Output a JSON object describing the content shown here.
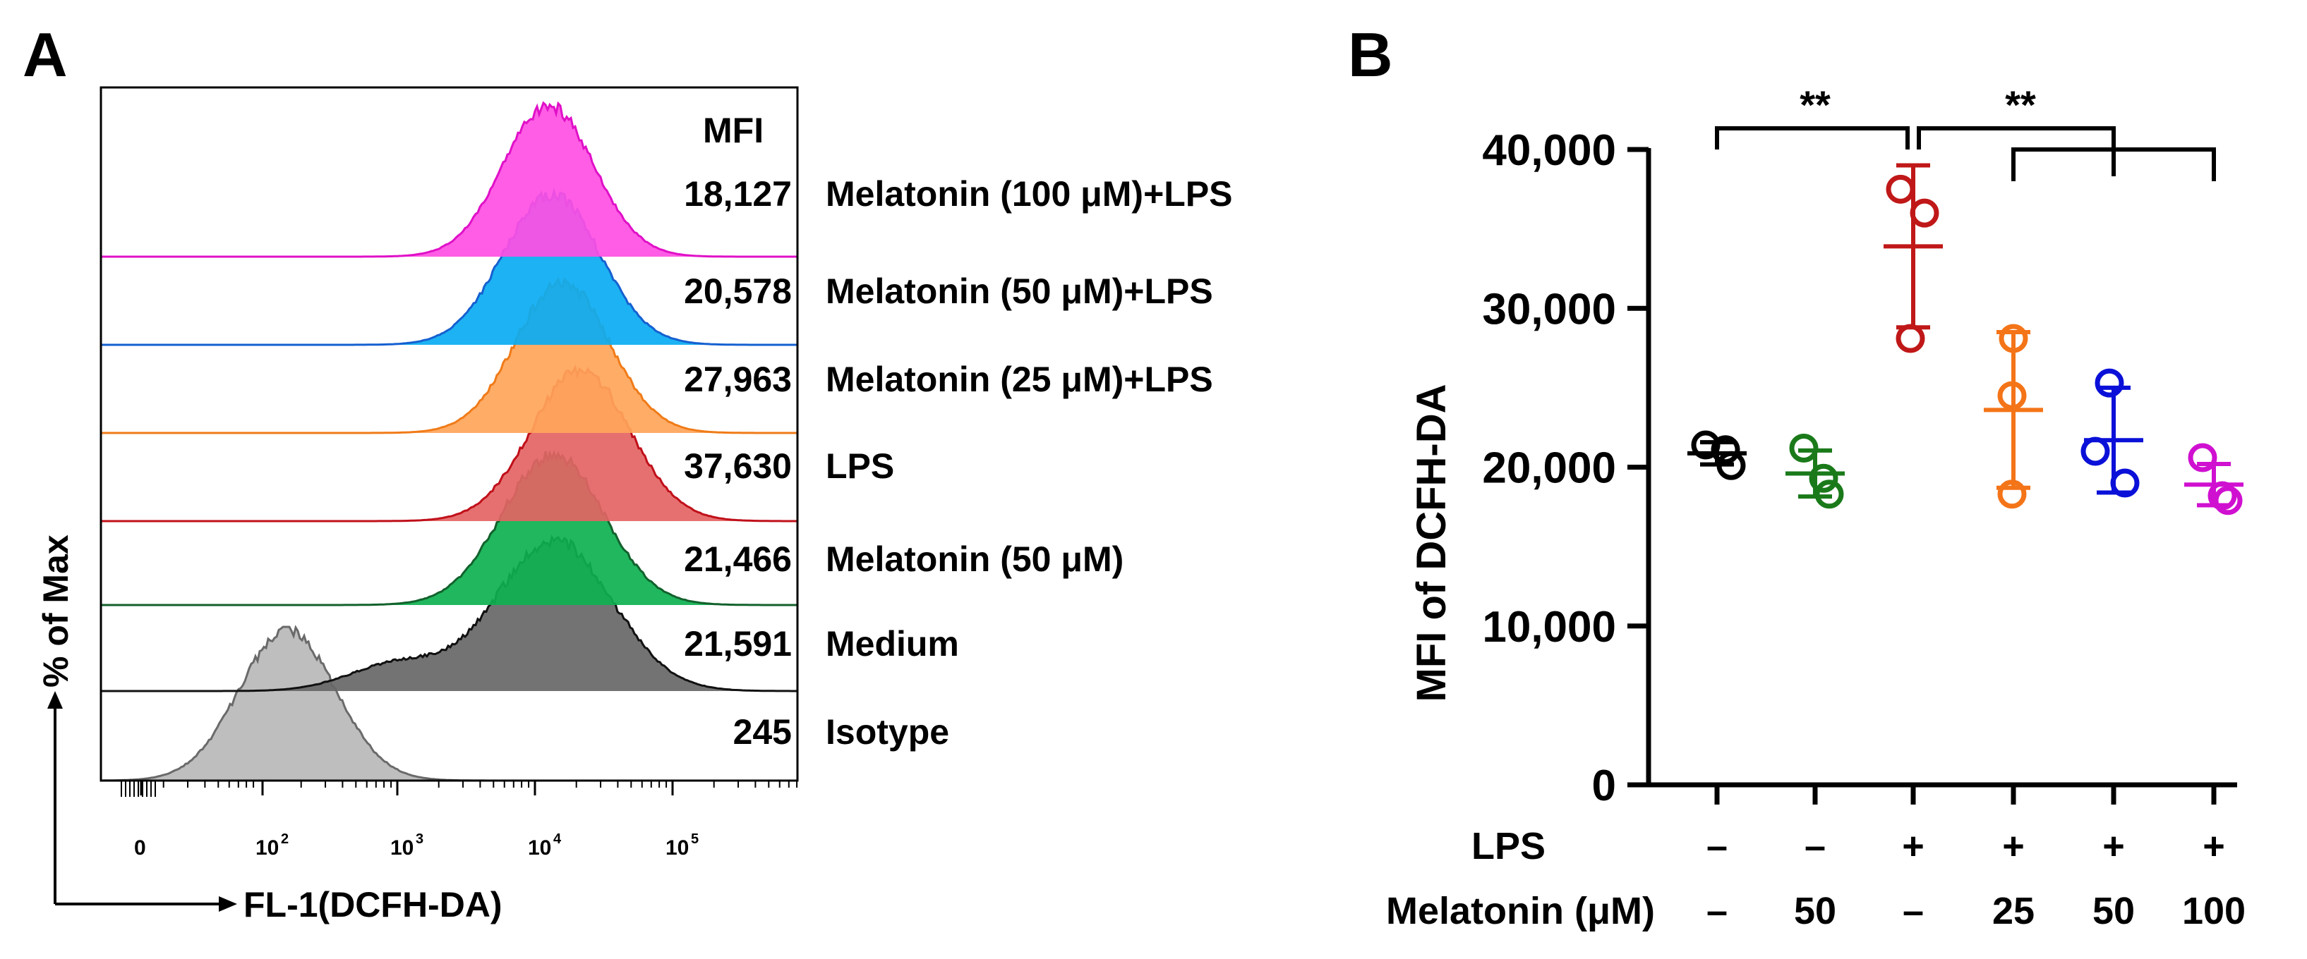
{
  "chart_data": [
    {
      "panel": "A",
      "type": "area",
      "title": "",
      "xlabel": "FL-1(DCFH-DA)",
      "ylabel": "% of Max",
      "mfi_header": "MFI",
      "x_tick_labels": [
        {
          "base": "0",
          "exp": ""
        },
        {
          "base": "10",
          "exp": "2"
        },
        {
          "base": "10",
          "exp": "3"
        },
        {
          "base": "10",
          "exp": "4"
        },
        {
          "base": "10",
          "exp": "5"
        }
      ],
      "x_tick_log_values": [
        0,
        2,
        3,
        4,
        5
      ],
      "series": [
        {
          "name": "Melatonin (100 μM)+LPS",
          "mfi": "18,127",
          "color": "#ff4fe3",
          "edge": "#e010c8",
          "peak_log": 4.1,
          "width": 0.33
        },
        {
          "name": "Melatonin (50 μM)+LPS",
          "mfi": "20,578",
          "color": "#0aabf2",
          "edge": "#1560d0",
          "peak_log": 4.12,
          "width": 0.35
        },
        {
          "name": "Melatonin (25 μM)+LPS",
          "mfi": "27,963",
          "color": "#ffa55a",
          "edge": "#f07b18",
          "peak_log": 4.2,
          "width": 0.34
        },
        {
          "name": "LPS",
          "mfi": "37,630",
          "color": "#e46464",
          "edge": "#c0101a",
          "peak_log": 4.33,
          "width": 0.36
        },
        {
          "name": "Melatonin (50 μM)",
          "mfi": "21,466",
          "color": "#0db150",
          "edge": "#12612c",
          "peak_log": 4.13,
          "width": 0.37
        },
        {
          "name": "Medium",
          "mfi": "21,591",
          "color": "#676767",
          "edge": "#111111",
          "peak_log": 4.14,
          "width": 0.42
        },
        {
          "name": "Isotype",
          "mfi": "245",
          "color": "#b8b8b8",
          "edge": "#6a6a6a",
          "peak_log": 2.2,
          "width": 0.35
        }
      ]
    },
    {
      "panel": "B",
      "type": "scatter",
      "title": "",
      "xlabel": "",
      "ylabel": "MFI of DCFH-DA",
      "ylim": [
        0,
        40000
      ],
      "y_ticks": [
        0,
        10000,
        20000,
        30000,
        40000
      ],
      "y_tick_labels": [
        "0",
        "10,000",
        "20,000",
        "30,000",
        "40,000"
      ],
      "condition_rows": [
        {
          "label": "LPS",
          "values": [
            "–",
            "–",
            "+",
            "+",
            "+",
            "+"
          ]
        },
        {
          "label": "Melatonin (μM)",
          "values": [
            "–",
            "50",
            "–",
            "25",
            "50",
            "100"
          ]
        }
      ],
      "groups": [
        {
          "color": "#000000",
          "points": [
            21400,
            21100,
            20100
          ],
          "mean": 20870,
          "sd": 700
        },
        {
          "color": "#1a7a1a",
          "points": [
            21200,
            19300,
            18300
          ],
          "mean": 19600,
          "sd": 1450
        },
        {
          "color": "#c01818",
          "points": [
            37500,
            36000,
            28100
          ],
          "mean": 33900,
          "sd": 5100
        },
        {
          "color": "#f47418",
          "points": [
            28100,
            24500,
            18300
          ],
          "mean": 23600,
          "sd": 4900
        },
        {
          "color": "#0a10d8",
          "points": [
            25300,
            21000,
            19000
          ],
          "mean": 21700,
          "sd": 3300
        },
        {
          "color": "#d010d0",
          "points": [
            20600,
            18200,
            17900
          ],
          "mean": 18900,
          "sd": 1300
        }
      ],
      "significance": [
        {
          "from_group": 0,
          "to_group": 2,
          "label": "**"
        },
        {
          "from_group": 2,
          "to_groups": [
            3,
            4,
            5
          ],
          "label": "**"
        }
      ]
    }
  ],
  "panel_labels": {
    "a": "A",
    "b": "B"
  }
}
